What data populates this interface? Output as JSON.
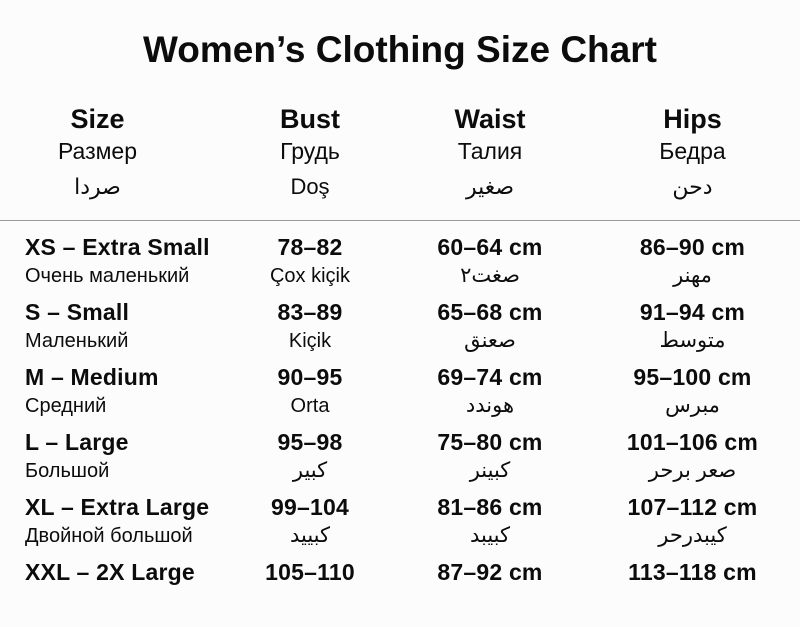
{
  "title": "Women’s Clothing Size Chart",
  "colors": {
    "background": "#fcfcfc",
    "text": "#0c0c0c",
    "divider": "#9a9a9a"
  },
  "columns": [
    {
      "label": "Size",
      "sub1": "Размер",
      "sub2": "صردا"
    },
    {
      "label": "Bust",
      "sub1": "Грудь",
      "sub2": "Doş"
    },
    {
      "label": "Waist",
      "sub1": "Талия",
      "sub2": "صغير"
    },
    {
      "label": "Hips",
      "sub1": "Бедра",
      "sub2": "دحن"
    }
  ],
  "rows": [
    {
      "size": "XS – Extra Small",
      "size_sub": "Очень маленький",
      "bust": "78–82",
      "bust_sub": "Çox kiçik",
      "waist": "60–64 cm",
      "waist_sub": "صغت٢",
      "hips": "86–90 cm",
      "hips_sub": "مهنر"
    },
    {
      "size": "S – Small",
      "size_sub": "Маленький",
      "bust": "83–89",
      "bust_sub": "Kiçik",
      "waist": "65–68 cm",
      "waist_sub": "صعنق",
      "hips": "91–94 cm",
      "hips_sub": "متوسط"
    },
    {
      "size": "M – Medium",
      "size_sub": "Средний",
      "bust": "90–95",
      "bust_sub": "Orta",
      "waist": "69–74 cm",
      "waist_sub": "هوندد",
      "hips": "95–100 cm",
      "hips_sub": "مبرس"
    },
    {
      "size": "L – Large",
      "size_sub": "Большой",
      "bust": "95–98",
      "bust_sub": "كبير",
      "waist": "75–80 cm",
      "waist_sub": "كبينر",
      "hips": "101–106 cm",
      "hips_sub": "صعر برحر"
    },
    {
      "size": "XL – Extra Large",
      "size_sub": "Двойной большой",
      "bust": "99–104",
      "bust_sub": "كبييد",
      "waist": "81–86 cm",
      "waist_sub": "كبيبد",
      "hips": "107–112 cm",
      "hips_sub": "كيبدرحر"
    },
    {
      "size": "XXL – 2X Large",
      "bust": "105–110",
      "waist": "87–92 cm",
      "hips": "113–118 cm"
    }
  ]
}
